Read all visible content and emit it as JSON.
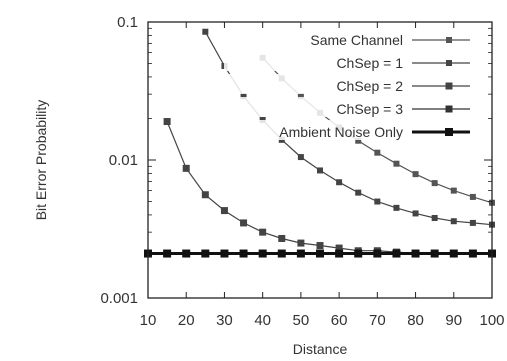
{
  "chart_data": {
    "type": "line",
    "title": "",
    "xlabel": "Distance",
    "ylabel": "Bit Error Probability",
    "xlim": [
      10,
      100
    ],
    "ylim": [
      0.001,
      0.1
    ],
    "yscale": "log",
    "grid": false,
    "legend_position": "top-right",
    "x_ticks": [
      "10",
      "20",
      "30",
      "40",
      "50",
      "60",
      "70",
      "80",
      "90",
      "100"
    ],
    "y_ticks": [
      "0.001",
      "0.01",
      "0.1"
    ],
    "series": [
      {
        "name": "Same Channel",
        "color": "#555555",
        "marker_size": 3,
        "x": [
          40,
          45,
          50,
          55,
          60,
          65,
          70,
          75,
          80,
          85,
          90,
          95,
          100
        ],
        "y": [
          0.055,
          0.039,
          0.029,
          0.022,
          0.0172,
          0.0138,
          0.0113,
          0.0094,
          0.0079,
          0.0068,
          0.006,
          0.0054,
          0.0049
        ]
      },
      {
        "name": "ChSep = 1",
        "color": "#444444",
        "marker_size": 3,
        "x": [
          25,
          30,
          35,
          40,
          45,
          50,
          55,
          60,
          65,
          70,
          75,
          80,
          85,
          90,
          95,
          100
        ],
        "y": [
          0.085,
          0.048,
          0.029,
          0.0195,
          0.014,
          0.0105,
          0.0084,
          0.0069,
          0.0058,
          0.005,
          0.0045,
          0.0041,
          0.0038,
          0.0036,
          0.0035,
          0.0034
        ]
      },
      {
        "name": "ChSep = 2",
        "color": "#444444",
        "marker_size": 3.5,
        "x": [
          15,
          20,
          25,
          30,
          35,
          40,
          45,
          50,
          55,
          60,
          65,
          70,
          75,
          80,
          85,
          90,
          95,
          100
        ],
        "y": [
          0.019,
          0.0087,
          0.0056,
          0.0043,
          0.0035,
          0.003,
          0.0027,
          0.0025,
          0.0024,
          0.0023,
          0.0022,
          0.0022,
          0.00215,
          0.0021,
          0.0021,
          0.0021,
          0.0021,
          0.0021
        ]
      },
      {
        "name": "ChSep = 3",
        "color": "#333333",
        "marker_size": 3.5,
        "x": [
          10,
          15,
          20,
          25,
          30,
          35,
          40,
          45,
          50,
          55,
          60,
          65,
          70,
          75,
          80,
          85,
          90,
          95,
          100
        ],
        "y": [
          0.0021,
          0.0021,
          0.0021,
          0.0021,
          0.0021,
          0.0021,
          0.0021,
          0.0021,
          0.0021,
          0.0021,
          0.0021,
          0.0021,
          0.0021,
          0.0021,
          0.0021,
          0.0021,
          0.0021,
          0.0021,
          0.0021
        ]
      },
      {
        "name": "Ambient Noise Only",
        "color": "#111111",
        "marker_size": 4,
        "thick": true,
        "x": [
          10,
          15,
          20,
          25,
          30,
          35,
          40,
          45,
          50,
          55,
          60,
          65,
          70,
          75,
          80,
          85,
          90,
          95,
          100
        ],
        "y": [
          0.0021,
          0.0021,
          0.0021,
          0.0021,
          0.0021,
          0.0021,
          0.0021,
          0.0021,
          0.0021,
          0.0021,
          0.0021,
          0.0021,
          0.0021,
          0.0021,
          0.0021,
          0.0021,
          0.0021,
          0.0021,
          0.0021
        ]
      }
    ]
  }
}
